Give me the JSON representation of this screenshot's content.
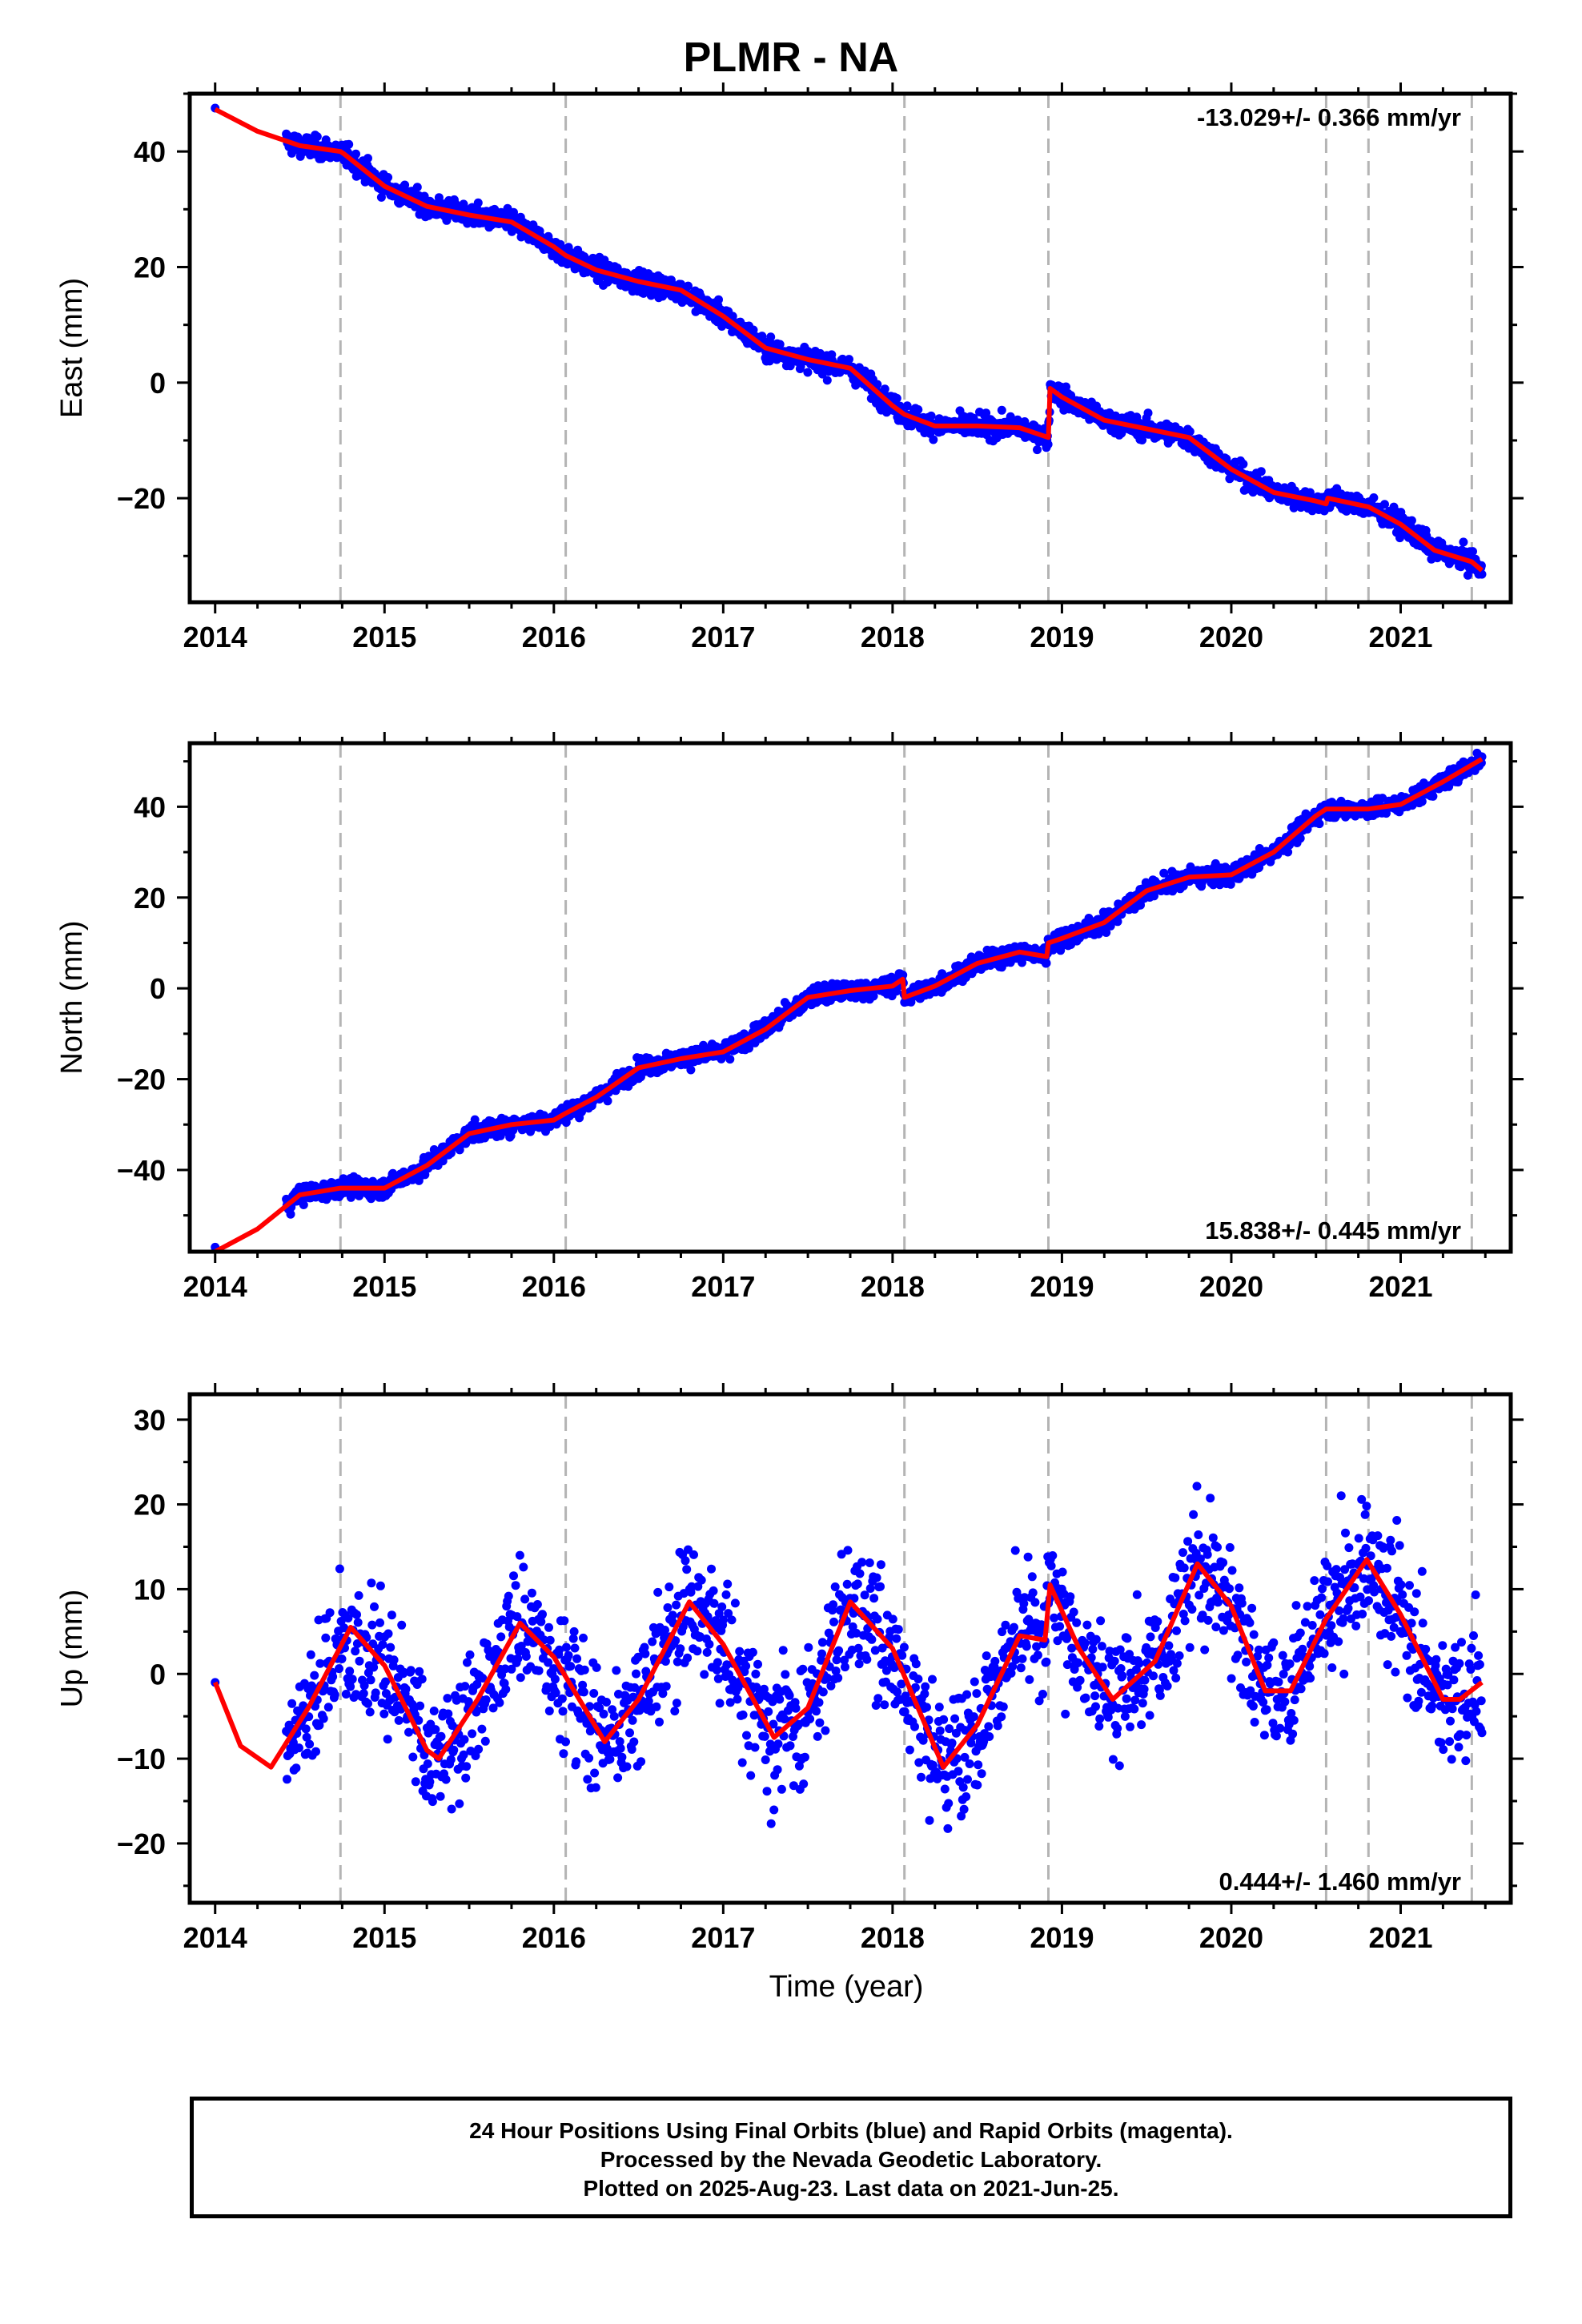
{
  "title": "PLMR - NA",
  "xlabel": "Time (year)",
  "footer": {
    "line1": "24 Hour Positions Using Final Orbits (blue) and Rapid Orbits (magenta).",
    "line2": "Processed by the Nevada Geodetic Laboratory.",
    "line3": "Plotted on 2025-Aug-23. Last data on 2021-Jun-25."
  },
  "colors": {
    "points": "#0000ff",
    "model": "#ff0000",
    "breaks": "#b4b4b4",
    "axis": "#000000"
  },
  "chart_data": [
    {
      "type": "scatter",
      "component": "East",
      "ylabel": "East (mm)",
      "rate_label": "-13.029+/- 0.366 mm/yr",
      "rate_position": "top-right",
      "xlim": [
        2013.85,
        2021.65
      ],
      "ylim": [
        -38,
        50
      ],
      "xticks": [
        2014,
        2015,
        2016,
        2017,
        2018,
        2019,
        2020,
        2021
      ],
      "yticks": [
        -20,
        0,
        20,
        40
      ],
      "breaks": [
        2014.74,
        2016.07,
        2018.07,
        2018.92,
        2020.56,
        2020.81,
        2021.42
      ],
      "noise_mm": 1.3,
      "first_point": [
        2014.0,
        47.5
      ],
      "model": [
        [
          2014.0,
          47.3
        ],
        [
          2014.25,
          43.5
        ],
        [
          2014.5,
          41.0
        ],
        [
          2014.74,
          40.0
        ],
        [
          2014.76,
          39.6
        ],
        [
          2015.0,
          34.0
        ],
        [
          2015.25,
          30.5
        ],
        [
          2015.5,
          29.0
        ],
        [
          2015.75,
          27.8
        ],
        [
          2016.0,
          23.5
        ],
        [
          2016.07,
          22.0
        ],
        [
          2016.25,
          19.5
        ],
        [
          2016.5,
          17.5
        ],
        [
          2016.75,
          16.0
        ],
        [
          2017.0,
          11.5
        ],
        [
          2017.25,
          6.0
        ],
        [
          2017.5,
          4.0
        ],
        [
          2017.75,
          2.5
        ],
        [
          2018.0,
          -4.0
        ],
        [
          2018.07,
          -5.5
        ],
        [
          2018.25,
          -7.5
        ],
        [
          2018.5,
          -7.5
        ],
        [
          2018.75,
          -7.8
        ],
        [
          2018.92,
          -9.5
        ],
        [
          2018.93,
          -1.0
        ],
        [
          2019.0,
          -2.5
        ],
        [
          2019.25,
          -6.5
        ],
        [
          2019.5,
          -8.0
        ],
        [
          2019.75,
          -9.5
        ],
        [
          2020.0,
          -15.0
        ],
        [
          2020.25,
          -19.0
        ],
        [
          2020.5,
          -20.5
        ],
        [
          2020.56,
          -21.0
        ],
        [
          2020.57,
          -20.0
        ],
        [
          2020.81,
          -21.5
        ],
        [
          2021.0,
          -24.5
        ],
        [
          2021.2,
          -29.0
        ],
        [
          2021.42,
          -31.0
        ],
        [
          2021.48,
          -32.5
        ]
      ]
    },
    {
      "type": "scatter",
      "component": "North",
      "ylabel": "North (mm)",
      "rate_label": "15.838+/- 0.445 mm/yr",
      "rate_position": "bottom-right",
      "xlim": [
        2013.85,
        2021.65
      ],
      "ylim": [
        -58,
        54
      ],
      "xticks": [
        2014,
        2015,
        2016,
        2017,
        2018,
        2019,
        2020,
        2021
      ],
      "yticks": [
        -40,
        -20,
        0,
        20,
        40
      ],
      "breaks": [
        2014.74,
        2016.07,
        2018.07,
        2018.92,
        2020.56,
        2020.81,
        2021.42
      ],
      "noise_mm": 1.4,
      "first_point": [
        2014.0,
        -57.0
      ],
      "model": [
        [
          2014.0,
          -58.0
        ],
        [
          2014.25,
          -53.0
        ],
        [
          2014.5,
          -45.5
        ],
        [
          2014.74,
          -44.0
        ],
        [
          2015.0,
          -44.0
        ],
        [
          2015.25,
          -39.0
        ],
        [
          2015.5,
          -32.0
        ],
        [
          2015.75,
          -30.0
        ],
        [
          2016.0,
          -29.0
        ],
        [
          2016.07,
          -27.5
        ],
        [
          2016.25,
          -24.0
        ],
        [
          2016.5,
          -17.5
        ],
        [
          2016.75,
          -15.5
        ],
        [
          2017.0,
          -14.0
        ],
        [
          2017.25,
          -9.0
        ],
        [
          2017.5,
          -2.0
        ],
        [
          2017.75,
          -0.5
        ],
        [
          2018.0,
          0.5
        ],
        [
          2018.06,
          2.0
        ],
        [
          2018.07,
          -2.0
        ],
        [
          2018.25,
          0.5
        ],
        [
          2018.5,
          5.5
        ],
        [
          2018.75,
          8.0
        ],
        [
          2018.91,
          7.0
        ],
        [
          2018.92,
          10.0
        ],
        [
          2019.0,
          11.0
        ],
        [
          2019.25,
          14.5
        ],
        [
          2019.5,
          21.5
        ],
        [
          2019.75,
          24.5
        ],
        [
          2020.0,
          25.0
        ],
        [
          2020.25,
          30.0
        ],
        [
          2020.5,
          38.0
        ],
        [
          2020.56,
          39.5
        ],
        [
          2020.81,
          39.5
        ],
        [
          2021.0,
          40.5
        ],
        [
          2021.25,
          45.5
        ],
        [
          2021.48,
          50.5
        ]
      ]
    },
    {
      "type": "scatter",
      "component": "Up",
      "ylabel": "Up (mm)",
      "rate_label": "0.444+/- 1.460 mm/yr",
      "rate_position": "bottom-right",
      "xlim": [
        2013.85,
        2021.65
      ],
      "ylim": [
        -27,
        33
      ],
      "xticks": [
        2014,
        2015,
        2016,
        2017,
        2018,
        2019,
        2020,
        2021
      ],
      "yticks": [
        -20,
        -10,
        0,
        10,
        20,
        30
      ],
      "breaks": [
        2014.74,
        2016.07,
        2018.07,
        2018.92,
        2020.56,
        2020.81,
        2021.42
      ],
      "noise_mm": 5.0,
      "first_point": [
        2014.0,
        -1.0
      ],
      "model": [
        [
          2014.0,
          -1.0
        ],
        [
          2014.15,
          -8.5
        ],
        [
          2014.33,
          -11.0
        ],
        [
          2014.55,
          -4.0
        ],
        [
          2014.8,
          5.5
        ],
        [
          2015.0,
          1.0
        ],
        [
          2015.25,
          -9.0
        ],
        [
          2015.32,
          -10.0
        ],
        [
          2015.55,
          -3.0
        ],
        [
          2015.8,
          6.0
        ],
        [
          2016.0,
          2.0
        ],
        [
          2016.3,
          -8.0
        ],
        [
          2016.5,
          -3.0
        ],
        [
          2016.8,
          8.5
        ],
        [
          2017.0,
          3.5
        ],
        [
          2017.3,
          -7.5
        ],
        [
          2017.5,
          -4.0
        ],
        [
          2017.75,
          8.5
        ],
        [
          2018.0,
          3.0
        ],
        [
          2018.3,
          -11.0
        ],
        [
          2018.5,
          -6.0
        ],
        [
          2018.75,
          4.5
        ],
        [
          2018.9,
          4.0
        ],
        [
          2018.93,
          10.5
        ],
        [
          2019.1,
          3.0
        ],
        [
          2019.3,
          -3.0
        ],
        [
          2019.55,
          1.5
        ],
        [
          2019.8,
          13.0
        ],
        [
          2020.0,
          8.0
        ],
        [
          2020.2,
          -2.0
        ],
        [
          2020.35,
          -2.0
        ],
        [
          2020.56,
          6.5
        ],
        [
          2020.8,
          13.5
        ],
        [
          2021.0,
          7.0
        ],
        [
          2021.25,
          -3.0
        ],
        [
          2021.35,
          -3.0
        ],
        [
          2021.48,
          -1.0
        ]
      ]
    }
  ]
}
